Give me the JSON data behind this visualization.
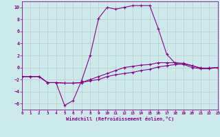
{
  "xlabel": "Windchill (Refroidissement éolien,°C)",
  "ylabel": "",
  "xlim": [
    0,
    23
  ],
  "ylim": [
    -7,
    11
  ],
  "yticks": [
    -6,
    -4,
    -2,
    0,
    2,
    4,
    6,
    8,
    10
  ],
  "xticks": [
    0,
    1,
    2,
    3,
    4,
    5,
    6,
    7,
    8,
    9,
    10,
    11,
    12,
    13,
    14,
    15,
    16,
    17,
    18,
    19,
    20,
    21,
    22,
    23
  ],
  "background_color": "#cce9ec",
  "line_color": "#880088",
  "grid_color": "#bbcccc",
  "line1_x": [
    0,
    1,
    2,
    3,
    4,
    5,
    6,
    7,
    8,
    9,
    10,
    11,
    12,
    13,
    14,
    15,
    16,
    17,
    18,
    19,
    20,
    21,
    22,
    23
  ],
  "line1_y": [
    -1.5,
    -1.5,
    -1.5,
    -2.5,
    -2.5,
    -6.3,
    -5.5,
    -2.2,
    2.0,
    8.2,
    10.0,
    9.7,
    10.0,
    10.3,
    10.3,
    10.3,
    6.5,
    2.2,
    0.7,
    0.5,
    0.0,
    -0.2,
    -0.2,
    0.0
  ],
  "line2_x": [
    0,
    1,
    2,
    3,
    4,
    5,
    6,
    7,
    8,
    9,
    10,
    11,
    12,
    13,
    14,
    15,
    16,
    17,
    18,
    19,
    20,
    21,
    22,
    23
  ],
  "line2_y": [
    -1.5,
    -1.5,
    -1.5,
    -2.5,
    -2.5,
    -2.6,
    -2.6,
    -2.5,
    -2.0,
    -1.5,
    -1.0,
    -0.5,
    0.0,
    0.2,
    0.4,
    0.5,
    0.8,
    0.8,
    0.8,
    0.7,
    0.3,
    -0.1,
    -0.1,
    0.0
  ],
  "line3_x": [
    0,
    1,
    2,
    3,
    4,
    5,
    6,
    7,
    8,
    9,
    10,
    11,
    12,
    13,
    14,
    15,
    16,
    17,
    18,
    19,
    20,
    21,
    22,
    23
  ],
  "line3_y": [
    -1.5,
    -1.5,
    -1.5,
    -2.5,
    -2.5,
    -2.6,
    -2.6,
    -2.5,
    -2.2,
    -2.0,
    -1.5,
    -1.2,
    -1.0,
    -0.8,
    -0.5,
    -0.3,
    0.1,
    0.3,
    0.5,
    0.6,
    0.3,
    -0.1,
    -0.1,
    0.0
  ]
}
